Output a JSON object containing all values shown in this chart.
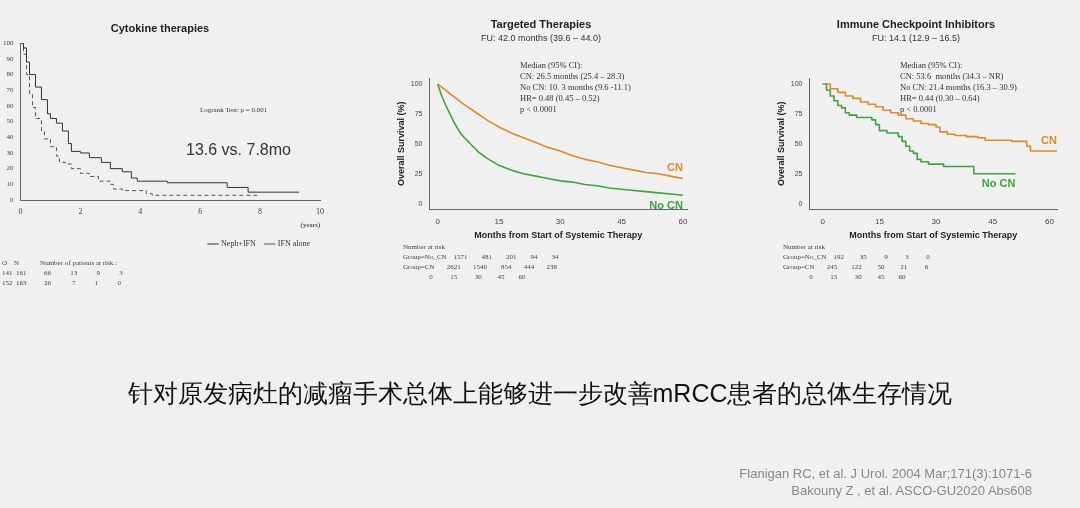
{
  "chart_data": [
    {
      "type": "step",
      "title": "Cytokine therapies",
      "xlabel": "(years)",
      "xlim": [
        0,
        10
      ],
      "ylim": [
        0,
        100
      ],
      "xticks": [
        0,
        2,
        4,
        6,
        8,
        10
      ],
      "yticks": [
        0,
        10,
        20,
        30,
        40,
        50,
        60,
        70,
        80,
        90,
        100
      ],
      "grid": false,
      "legend": "bottom",
      "marker": "none",
      "annotations": [
        "Logrank Test: p = 0.001",
        "13.6 vs. 7.8mo"
      ],
      "series": [
        {
          "name": "Neph+IFN",
          "color": "#333333",
          "line_style": "solid",
          "x": [
            0,
            0.1,
            0.2,
            0.3,
            0.5,
            0.7,
            0.9,
            1.0,
            1.2,
            1.4,
            1.6,
            1.7,
            2.0,
            2.3,
            2.7,
            3.0,
            3.4,
            3.7,
            3.9,
            4.8,
            4.9,
            6.8,
            6.9,
            7.5,
            7.6,
            9.3
          ],
          "values": [
            100,
            97,
            88,
            80,
            72,
            64,
            55,
            52,
            49,
            44,
            36,
            31,
            30,
            27,
            24,
            20,
            18,
            14,
            12,
            12,
            11,
            11,
            8,
            8,
            5,
            5
          ]
        },
        {
          "name": "IFN alone",
          "color": "#555555",
          "line_style": "dashed",
          "x": [
            0,
            0.1,
            0.2,
            0.3,
            0.4,
            0.5,
            0.7,
            0.8,
            1.0,
            1.2,
            1.3,
            1.5,
            1.7,
            2.0,
            2.3,
            2.6,
            3.0,
            3.1,
            3.4,
            4.0,
            4.2,
            4.4,
            7.9
          ],
          "values": [
            100,
            93,
            80,
            68,
            59,
            52,
            44,
            39,
            34,
            28,
            24,
            23,
            20,
            17,
            15,
            12,
            10,
            7,
            6,
            6,
            4,
            3,
            3
          ]
        }
      ]
    },
    {
      "type": "other",
      "annotations": [
        "O    N            Number of patients at risk :",
        "141  161          66           13           9           3",
        "152  163          26            7           1           0"
      ]
    },
    {
      "type": "line",
      "title": "Targeted Therapies",
      "subtitle": "FU: 42.0 months (39.6 – 44.0)",
      "xlabel": "Months from Start of Systemic Therapy",
      "ylabel": "Overall Survival (%)",
      "xlim": [
        -2,
        61
      ],
      "ylim": [
        -5,
        105
      ],
      "xticks": [
        0,
        15,
        30,
        45,
        60
      ],
      "yticks": [
        0,
        25,
        50,
        75,
        100
      ],
      "grid": false,
      "legend": false,
      "marker": "none",
      "annotations": [
        "Median (95% CI):",
        "CN: 26.5 months (25.4 – 28.3)",
        "No CN: 10. 3 months (9.6 -11.1)",
        "HR= 0.48 (0.45 – 0.52)",
        "p < 0.0001"
      ],
      "series": [
        {
          "name": "CN",
          "color": "#e0892a",
          "x": [
            0,
            3,
            6,
            9,
            12,
            15,
            18,
            21,
            24,
            27,
            30,
            33,
            36,
            39,
            42,
            45,
            48,
            51,
            54,
            57,
            60
          ],
          "values": [
            100,
            92,
            84,
            77,
            70,
            64,
            59,
            55,
            51,
            47,
            44,
            40,
            37,
            35,
            32,
            30,
            28,
            26,
            25,
            23,
            21
          ]
        },
        {
          "name": "No CN",
          "color": "#3ea43e",
          "x": [
            0,
            1,
            2,
            3,
            4,
            5,
            6,
            8,
            10,
            12,
            15,
            18,
            21,
            24,
            27,
            30,
            33,
            36,
            39,
            42,
            45,
            48,
            51,
            54,
            57,
            60
          ],
          "values": [
            100,
            90,
            82,
            75,
            68,
            62,
            57,
            50,
            43,
            38,
            32,
            28,
            25,
            23,
            21,
            19,
            18,
            16,
            15,
            13,
            12,
            11,
            10,
            9,
            8,
            7
          ]
        }
      ]
    },
    {
      "type": "other",
      "annotations": [
        "Number at risk",
        "Group=No_CN    1571        481        201        94        34",
        "Group=CN       2621       1540        854       444       238",
        "               0          15          30         45        60"
      ]
    },
    {
      "type": "step",
      "title": "Immune Checkpoint Inhibitors",
      "subtitle": "FU: 14.1 (12.9 – 16.5)",
      "xlabel": "Months from Start of Systemic Therapy",
      "ylabel": "Overall Survival (%)",
      "xlim": [
        -3.5,
        62
      ],
      "ylim": [
        -5,
        105
      ],
      "xticks": [
        0,
        15,
        30,
        45,
        60
      ],
      "yticks": [
        0,
        25,
        50,
        75,
        100
      ],
      "grid": false,
      "legend": false,
      "marker": "none",
      "annotations": [
        "Median (95% CI):",
        "CN: 53.6  months (34.3 – NR)",
        "No CN: 21.4 months (16.3 – 30.9)",
        "HR= 0.44 (0.30 – 0.64)",
        "p < 0.0001"
      ],
      "series": [
        {
          "name": "CN",
          "color": "#e0892a",
          "x": [
            0,
            2,
            4,
            6,
            8,
            10,
            12,
            14,
            16,
            18,
            20,
            22,
            24,
            26,
            28,
            30,
            31,
            33,
            35,
            38,
            41,
            43,
            47,
            50,
            53,
            54,
            55,
            62
          ],
          "values": [
            100,
            96,
            93,
            90,
            88,
            85,
            83,
            81,
            78,
            76,
            74,
            71,
            69,
            67,
            66,
            64,
            60,
            58,
            57,
            56,
            55,
            53,
            53,
            52,
            52,
            48,
            44,
            44
          ]
        },
        {
          "name": "No CN",
          "color": "#3ea43e",
          "x": [
            0,
            1,
            2,
            3,
            4,
            5,
            6,
            7,
            9,
            13,
            14,
            15,
            17,
            20,
            21,
            22,
            23,
            24,
            25,
            26,
            28,
            31,
            32,
            37,
            40,
            51
          ],
          "values": [
            100,
            95,
            90,
            86,
            82,
            80,
            76,
            74,
            72,
            70,
            66,
            61,
            59,
            56,
            52,
            48,
            44,
            42,
            37,
            35,
            33,
            33,
            31,
            31,
            25,
            25
          ]
        }
      ]
    },
    {
      "type": "other",
      "annotations": [
        "Number at risk",
        "Group=No_CN    192         35          9          3          0",
        "Group=CN       245        122         50         21          6",
        "               0          15          30         45        60"
      ]
    },
    {
      "type": "other",
      "title": "针对原发病灶的减瘤手术总体上能够进一步改善mRCC患者的总体生存情况",
      "annotations": [
        "Flanigan RC, et al. J Urol. 2004 Mar;171(3):1071-6",
        "Bakouny Z , et al. ASCO-GU2020 Abs608"
      ]
    }
  ]
}
